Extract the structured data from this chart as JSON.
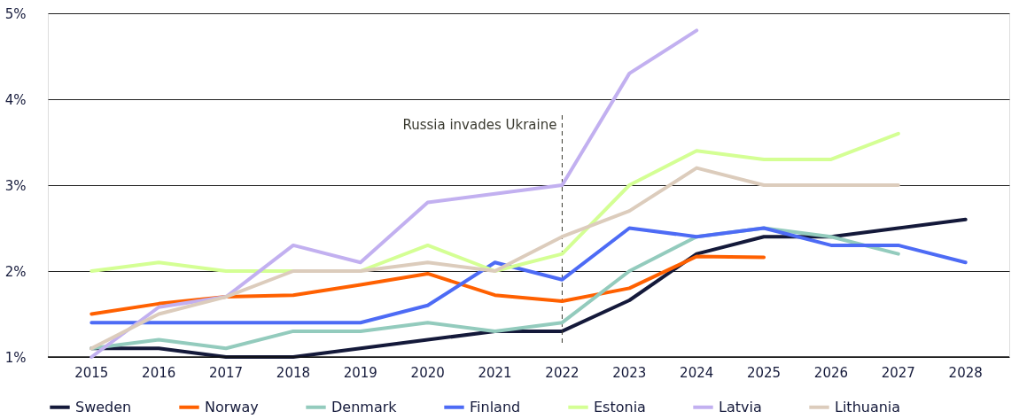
{
  "chart_data": {
    "type": "line",
    "categories": [
      "2015",
      "2016",
      "2017",
      "2018",
      "2019",
      "2020",
      "2021",
      "2022",
      "2023",
      "2024",
      "2025",
      "2026",
      "2027",
      "2028"
    ],
    "series": [
      {
        "name": "Sweden",
        "color": "#14193a",
        "values": [
          1.1,
          1.1,
          1.0,
          1.0,
          1.1,
          1.2,
          1.3,
          1.3,
          1.66,
          2.2,
          2.4,
          2.4,
          2.5,
          2.6
        ]
      },
      {
        "name": "Norway",
        "color": "#ff6000",
        "values": [
          1.5,
          1.62,
          1.7,
          1.72,
          1.84,
          1.97,
          1.72,
          1.65,
          1.8,
          2.17,
          2.16,
          null,
          null,
          null
        ]
      },
      {
        "name": "Denmark",
        "color": "#93cbbd",
        "values": [
          1.1,
          1.2,
          1.1,
          1.3,
          1.3,
          1.4,
          1.3,
          1.4,
          2.0,
          2.4,
          2.5,
          2.4,
          2.2,
          null
        ]
      },
      {
        "name": "Finland",
        "color": "#4d6bf5",
        "values": [
          1.4,
          1.4,
          1.4,
          1.4,
          1.4,
          1.6,
          2.1,
          1.9,
          2.5,
          2.4,
          2.5,
          2.3,
          2.3,
          2.1
        ]
      },
      {
        "name": "Estonia",
        "color": "#d4ff94",
        "values": [
          2.0,
          2.1,
          2.0,
          2.0,
          2.0,
          2.3,
          2.0,
          2.2,
          3.0,
          3.4,
          3.3,
          3.3,
          3.6,
          null
        ]
      },
      {
        "name": "Latvia",
        "color": "#c2b0f0",
        "values": [
          1.0,
          1.58,
          1.7,
          2.3,
          2.1,
          2.8,
          2.9,
          3.0,
          4.3,
          4.8,
          null,
          null,
          null,
          null
        ]
      },
      {
        "name": "Lithuania",
        "color": "#dcccbc",
        "values": [
          1.1,
          1.5,
          1.7,
          2.0,
          2.0,
          2.1,
          2.0,
          2.4,
          2.7,
          3.2,
          3.0,
          3.0,
          3.0,
          null
        ]
      }
    ],
    "ylim": [
      1,
      5
    ],
    "yticks": [
      {
        "value": 1,
        "label": "1%"
      },
      {
        "value": 2,
        "label": "2%"
      },
      {
        "value": 3,
        "label": "3%"
      },
      {
        "value": 4,
        "label": "4%"
      },
      {
        "value": 5,
        "label": "5%"
      }
    ],
    "grid": "y",
    "legend": "bottom",
    "marker": "none",
    "line_style": "solid",
    "ref_lines": [
      {
        "axis": "x",
        "value": "2022",
        "label": "Russia invades Ukraine",
        "color": "#3a3a30",
        "line_style": "dashed"
      }
    ]
  }
}
